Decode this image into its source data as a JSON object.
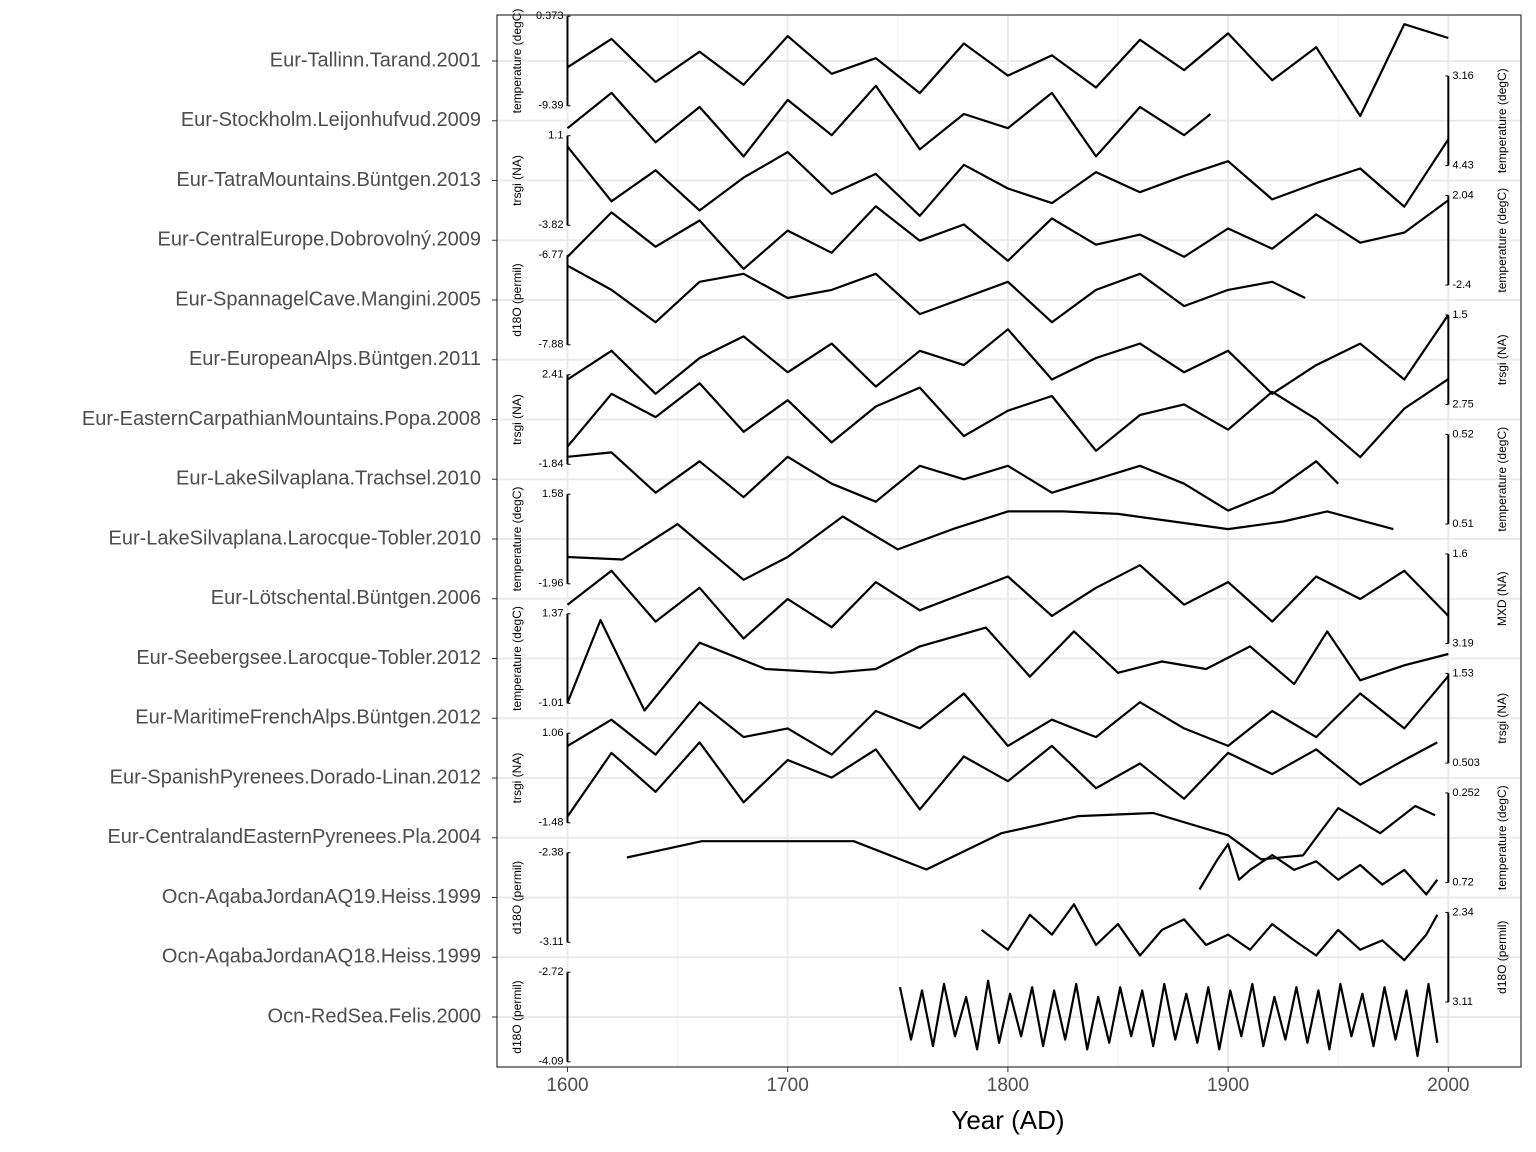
{
  "chart_data": {
    "type": "stacked-line",
    "x_label": "Year (AD)",
    "xlim": [
      1568,
      2033
    ],
    "xticks": [
      1600,
      1700,
      1800,
      1900,
      2000
    ],
    "grid": true,
    "color": "#000000",
    "records": [
      {
        "label": "Eur-Tallinn.Tarand.2001",
        "variable": "temperature (degC)",
        "axis_side": "left",
        "yticks": [
          0.373,
          -9.39
        ],
        "x": [
          1600,
          1620,
          1640,
          1660,
          1680,
          1700,
          1720,
          1740,
          1760,
          1780,
          1800,
          1820,
          1840,
          1860,
          1880,
          1900,
          1920,
          1940,
          1960,
          1980,
          2000
        ],
        "values": [
          -5.2,
          -2.1,
          -6.8,
          -3.5,
          -7.1,
          -1.8,
          -5.9,
          -4.2,
          -8.0,
          -2.6,
          -6.1,
          -3.9,
          -7.4,
          -2.2,
          -5.5,
          -1.5,
          -6.6,
          -3.0,
          -10.5,
          -0.5,
          -2.0
        ]
      },
      {
        "label": "Eur-Stockholm.Leijonhufvud.2009",
        "variable": "temperature (degC)",
        "axis_side": "right",
        "yticks": [
          3.16,
          4.43
        ],
        "x": [
          1600,
          1620,
          1640,
          1660,
          1680,
          1700,
          1720,
          1740,
          1760,
          1780,
          1800,
          1820,
          1840,
          1860,
          1880,
          1892
        ],
        "values": [
          3.9,
          3.4,
          4.1,
          3.6,
          4.3,
          3.5,
          4.0,
          3.3,
          4.2,
          3.7,
          3.9,
          3.4,
          4.3,
          3.6,
          4.0,
          3.7
        ]
      },
      {
        "label": "Eur-TatraMountains.Büntgen.2013",
        "variable": "trsgi (NA)",
        "axis_side": "left",
        "yticks": [
          1.1,
          -3.82
        ],
        "x": [
          1600,
          1620,
          1640,
          1660,
          1680,
          1700,
          1720,
          1740,
          1760,
          1780,
          1800,
          1820,
          1840,
          1860,
          1880,
          1900,
          1920,
          1940,
          1960,
          1980,
          2000
        ],
        "values": [
          0.5,
          -2.5,
          -0.8,
          -3.0,
          -1.2,
          0.2,
          -2.1,
          -1.0,
          -3.3,
          -0.5,
          -1.8,
          -2.6,
          -0.9,
          -2.0,
          -1.1,
          -0.3,
          -2.4,
          -1.5,
          -0.7,
          -2.8,
          0.9
        ]
      },
      {
        "label": "Eur-CentralEurope.Dobrovolný.2009",
        "variable": "temperature (degC)",
        "axis_side": "right",
        "yticks": [
          2.04,
          -2.4
        ],
        "x": [
          1600,
          1620,
          1640,
          1660,
          1680,
          1700,
          1720,
          1740,
          1760,
          1780,
          1800,
          1820,
          1840,
          1860,
          1880,
          1900,
          1920,
          1940,
          1960,
          1980,
          2000
        ],
        "values": [
          -1.0,
          1.2,
          -0.5,
          0.8,
          -1.6,
          0.3,
          -0.8,
          1.5,
          -0.2,
          0.6,
          -1.2,
          0.9,
          -0.4,
          0.1,
          -1.0,
          0.4,
          -0.6,
          1.1,
          -0.3,
          0.2,
          1.8
        ]
      },
      {
        "label": "Eur-SpannagelCave.Mangini.2005",
        "variable": "d18O (permil)",
        "axis_side": "left",
        "yticks": [
          -6.77,
          -7.88
        ],
        "x": [
          1600,
          1620,
          1640,
          1660,
          1680,
          1700,
          1720,
          1740,
          1760,
          1780,
          1800,
          1820,
          1840,
          1860,
          1880,
          1900,
          1920,
          1935
        ],
        "values": [
          -6.9,
          -7.2,
          -7.6,
          -7.1,
          -7.0,
          -7.3,
          -7.2,
          -7.0,
          -7.5,
          -7.3,
          -7.1,
          -7.6,
          -7.2,
          -7.0,
          -7.4,
          -7.2,
          -7.1,
          -7.3
        ]
      },
      {
        "label": "Eur-EuropeanAlps.Büntgen.2011",
        "variable": "trsgi (NA)",
        "axis_side": "right",
        "yticks": [
          1.5,
          2.75
        ],
        "x": [
          1600,
          1620,
          1640,
          1660,
          1680,
          1700,
          1720,
          1740,
          1760,
          1780,
          1800,
          1820,
          1840,
          1860,
          1880,
          1900,
          1920,
          1940,
          1960,
          1980,
          2000
        ],
        "values": [
          2.4,
          2.0,
          2.6,
          2.1,
          1.8,
          2.3,
          1.9,
          2.5,
          2.0,
          2.2,
          1.7,
          2.4,
          2.1,
          1.9,
          2.3,
          2.0,
          2.6,
          2.2,
          1.9,
          2.4,
          1.5
        ]
      },
      {
        "label": "Eur-EasternCarpathianMountains.Popa.2008",
        "variable": "trsgi (NA)",
        "axis_side": "left",
        "yticks": [
          2.41,
          -1.84
        ],
        "x": [
          1600,
          1620,
          1640,
          1660,
          1680,
          1700,
          1720,
          1740,
          1760,
          1780,
          1800,
          1820,
          1840,
          1860,
          1880,
          1900,
          1920,
          1940,
          1960,
          1980,
          2000
        ],
        "values": [
          -1.0,
          1.5,
          0.4,
          2.0,
          -0.3,
          1.2,
          -0.8,
          0.9,
          1.8,
          -0.5,
          0.7,
          1.4,
          -1.2,
          0.5,
          1.0,
          -0.2,
          1.6,
          0.3,
          -1.5,
          0.8,
          2.2
        ]
      },
      {
        "label": "Eur-LakeSilvaplana.Trachsel.2010",
        "variable": "temperature (degC)",
        "axis_side": "right",
        "yticks": [
          0.52,
          0.51
        ],
        "x": [
          1600,
          1620,
          1640,
          1660,
          1680,
          1700,
          1720,
          1740,
          1760,
          1780,
          1800,
          1820,
          1840,
          1860,
          1880,
          1900,
          1920,
          1940,
          1950
        ],
        "values": [
          0.5175,
          0.518,
          0.5135,
          0.517,
          0.513,
          0.5175,
          0.5145,
          0.5125,
          0.5165,
          0.515,
          0.5165,
          0.5135,
          0.515,
          0.5165,
          0.5145,
          0.5115,
          0.5135,
          0.517,
          0.5145
        ]
      },
      {
        "label": "Eur-LakeSilvaplana.Larocque-Tobler.2010",
        "variable": "temperature (degC)",
        "axis_side": "left",
        "yticks": [
          1.58,
          -1.96
        ],
        "x": [
          1600,
          1625,
          1650,
          1680,
          1700,
          1725,
          1750,
          1775,
          1800,
          1825,
          1850,
          1875,
          1900,
          1925,
          1945,
          1975
        ],
        "values": [
          -0.9,
          -1.0,
          0.4,
          -1.8,
          -0.9,
          0.7,
          -0.6,
          0.2,
          0.9,
          0.9,
          0.8,
          0.5,
          0.2,
          0.5,
          0.9,
          0.2
        ]
      },
      {
        "label": "Eur-Lötschental.Büntgen.2006",
        "variable": "MXD (NA)",
        "axis_side": "right",
        "yticks": [
          1.6,
          3.19
        ],
        "x": [
          1600,
          1620,
          1640,
          1660,
          1680,
          1700,
          1720,
          1740,
          1760,
          1780,
          1800,
          1820,
          1840,
          1860,
          1880,
          1900,
          1920,
          1940,
          1960,
          1980,
          2000
        ],
        "values": [
          2.5,
          1.9,
          2.8,
          2.2,
          3.1,
          2.4,
          2.9,
          2.1,
          2.6,
          2.3,
          2.0,
          2.7,
          2.2,
          1.8,
          2.5,
          2.1,
          2.8,
          2.0,
          2.4,
          1.9,
          2.7
        ]
      },
      {
        "label": "Eur-Seebergsee.Larocque-Tobler.2012",
        "variable": "temperature (degC)",
        "axis_side": "left",
        "yticks": [
          1.37,
          -1.01
        ],
        "x": [
          1600,
          1615,
          1635,
          1660,
          1690,
          1720,
          1740,
          1760,
          1790,
          1810,
          1830,
          1850,
          1870,
          1890,
          1910,
          1930,
          1945,
          1960,
          1980,
          2000
        ],
        "values": [
          -1.0,
          1.2,
          -1.2,
          0.6,
          -0.1,
          -0.2,
          -0.1,
          0.5,
          1.0,
          -0.3,
          0.9,
          -0.2,
          0.1,
          -0.1,
          0.5,
          -0.5,
          0.9,
          -0.4,
          0.0,
          0.3
        ]
      },
      {
        "label": "Eur-MaritimeFrenchAlps.Büntgen.2012",
        "variable": "trsgi (NA)",
        "axis_side": "right",
        "yticks": [
          1.53,
          0.503
        ],
        "x": [
          1600,
          1620,
          1640,
          1660,
          1680,
          1700,
          1720,
          1740,
          1760,
          1780,
          1800,
          1820,
          1840,
          1860,
          1880,
          1900,
          1920,
          1940,
          1960,
          1980,
          2000
        ],
        "values": [
          0.7,
          1.0,
          0.6,
          1.2,
          0.8,
          0.9,
          0.6,
          1.1,
          0.9,
          1.3,
          0.7,
          1.0,
          0.8,
          1.2,
          0.9,
          0.7,
          1.1,
          0.8,
          1.3,
          0.9,
          1.5
        ]
      },
      {
        "label": "Eur-SpanishPyrenees.Dorado-Linan.2012",
        "variable": "trsgi (NA)",
        "axis_side": "left",
        "yticks": [
          1.06,
          -1.48
        ],
        "x": [
          1600,
          1620,
          1640,
          1660,
          1680,
          1700,
          1720,
          1740,
          1760,
          1780,
          1800,
          1820,
          1840,
          1860,
          1880,
          1900,
          1920,
          1940,
          1960,
          1980,
          1995
        ],
        "values": [
          -1.3,
          0.5,
          -0.6,
          0.8,
          -0.9,
          0.3,
          -0.2,
          0.6,
          -1.1,
          0.4,
          -0.3,
          0.7,
          -0.5,
          0.2,
          -0.8,
          0.5,
          -0.1,
          0.6,
          -0.4,
          0.3,
          0.8
        ]
      },
      {
        "label": "Eur-CentralandEasternPyrenees.Pla.2004",
        "variable": "temperature (degC)",
        "axis_side": "right",
        "yticks": [
          0.252,
          0.72
        ],
        "x": [
          1627,
          1661,
          1730,
          1763,
          1797,
          1832,
          1866,
          1900,
          1915,
          1934,
          1950,
          1969,
          1985,
          1994
        ],
        "values": [
          0.589,
          0.504,
          0.504,
          0.652,
          0.462,
          0.373,
          0.357,
          0.473,
          0.599,
          0.578,
          0.331,
          0.462,
          0.32,
          0.368
        ]
      },
      {
        "label": "Ocn-AqabaJordanAQ19.Heiss.1999",
        "variable": "d18O (permil)",
        "axis_side": "left",
        "yticks": [
          -2.38,
          -3.11
        ],
        "x": [
          1887,
          1895,
          1900,
          1905,
          1910,
          1920,
          1930,
          1940,
          1950,
          1960,
          1970,
          1980,
          1990,
          1995
        ],
        "values": [
          -2.68,
          -2.44,
          -2.31,
          -2.6,
          -2.52,
          -2.4,
          -2.52,
          -2.45,
          -2.6,
          -2.48,
          -2.64,
          -2.52,
          -2.72,
          -2.6
        ]
      },
      {
        "label": "Ocn-AqabaJordanAQ18.Heiss.1999",
        "variable": "d18O (permil)",
        "axis_side": "right",
        "yticks": [
          2.34,
          3.11
        ],
        "x": [
          1788,
          1800,
          1810,
          1820,
          1830,
          1840,
          1850,
          1860,
          1870,
          1880,
          1890,
          1900,
          1910,
          1920,
          1930,
          1940,
          1950,
          1960,
          1970,
          1980,
          1990,
          1995
        ],
        "values": [
          2.49,
          2.66,
          2.36,
          2.53,
          2.27,
          2.62,
          2.44,
          2.71,
          2.49,
          2.4,
          2.62,
          2.53,
          2.66,
          2.44,
          2.58,
          2.71,
          2.49,
          2.66,
          2.58,
          2.75,
          2.53,
          2.36
        ]
      },
      {
        "label": "Ocn-RedSea.Felis.2000",
        "variable": "d18O (permil)",
        "axis_side": "left",
        "yticks": [
          -2.72,
          -4.09
        ],
        "x": [
          1751,
          1756,
          1761,
          1766,
          1771,
          1776,
          1781,
          1786,
          1791,
          1796,
          1801,
          1806,
          1811,
          1816,
          1821,
          1826,
          1831,
          1836,
          1841,
          1846,
          1851,
          1856,
          1861,
          1866,
          1871,
          1876,
          1881,
          1886,
          1891,
          1896,
          1901,
          1906,
          1911,
          1916,
          1921,
          1926,
          1931,
          1936,
          1941,
          1946,
          1951,
          1956,
          1961,
          1966,
          1971,
          1976,
          1981,
          1986,
          1991,
          1995
        ],
        "values": [
          -2.95,
          -3.75,
          -3.0,
          -3.85,
          -2.9,
          -3.7,
          -3.1,
          -3.9,
          -2.85,
          -3.8,
          -3.05,
          -3.7,
          -2.95,
          -3.85,
          -3.0,
          -3.75,
          -2.9,
          -3.9,
          -3.1,
          -3.8,
          -2.95,
          -3.7,
          -3.0,
          -3.85,
          -2.9,
          -3.75,
          -3.05,
          -3.8,
          -2.95,
          -3.9,
          -3.0,
          -3.7,
          -2.9,
          -3.85,
          -3.1,
          -3.75,
          -2.95,
          -3.8,
          -3.0,
          -3.9,
          -2.9,
          -3.7,
          -3.05,
          -3.85,
          -2.95,
          -3.75,
          -3.0,
          -4.0,
          -2.9,
          -3.8
        ]
      }
    ]
  }
}
